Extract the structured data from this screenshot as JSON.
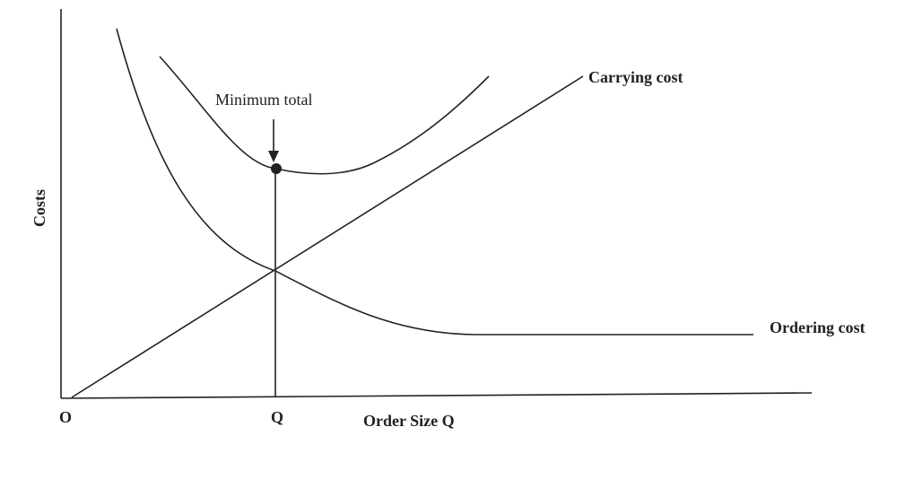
{
  "y_axis_label": "Costs",
  "x_axis_label": "Order Size Q",
  "origin_label": "O",
  "q_label": "Q",
  "minimum_label": "Minimum total",
  "carrying_label": "Carrying cost",
  "ordering_label": "Ordering cost"
}
